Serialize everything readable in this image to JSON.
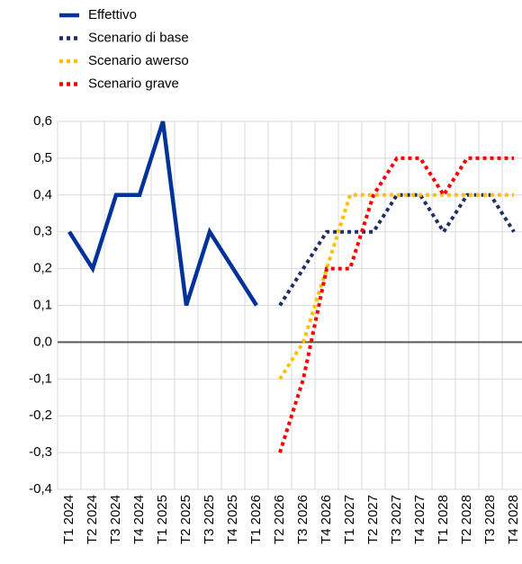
{
  "chart_data": {
    "type": "line",
    "categories": [
      "T1 2024",
      "T2 2024",
      "T3 2024",
      "T4 2024",
      "T1 2025",
      "T2 2025",
      "T3 2025",
      "T4 2025",
      "T1 2026",
      "T2 2026",
      "T3 2026",
      "T4 2026",
      "T1 2027",
      "T2 2027",
      "T3 2027",
      "T4 2027",
      "T1 2028",
      "T2 2028",
      "T3 2028",
      "T4 2028"
    ],
    "series": [
      {
        "name": "Effettivo",
        "color": "#003299",
        "style": "solid",
        "values": [
          0.3,
          0.2,
          0.4,
          0.4,
          0.6,
          0.1,
          0.3,
          0.2,
          0.1,
          null,
          null,
          null,
          null,
          null,
          null,
          null,
          null,
          null,
          null,
          null
        ]
      },
      {
        "name": "Scenario di base",
        "color": "#1f2f66",
        "style": "dotted",
        "values": [
          null,
          null,
          null,
          null,
          null,
          null,
          null,
          null,
          null,
          0.1,
          0.2,
          0.3,
          0.3,
          0.3,
          0.4,
          0.4,
          0.3,
          0.4,
          0.4,
          0.3
        ]
      },
      {
        "name": "Scenario awerso",
        "color": "#ffc000",
        "style": "dotted",
        "values": [
          null,
          null,
          null,
          null,
          null,
          null,
          null,
          null,
          null,
          -0.1,
          0.0,
          0.2,
          0.4,
          0.4,
          0.4,
          0.4,
          0.4,
          0.4,
          0.4,
          0.4
        ]
      },
      {
        "name": "Scenario grave",
        "color": "#ff0000",
        "style": "dotted",
        "values": [
          null,
          null,
          null,
          null,
          null,
          null,
          null,
          null,
          null,
          -0.3,
          -0.1,
          0.2,
          0.2,
          0.4,
          0.5,
          0.5,
          0.4,
          0.5,
          0.5,
          0.5
        ]
      }
    ],
    "ylim": [
      -0.4,
      0.6
    ],
    "yticks": [
      {
        "value": -0.4,
        "label": "-0,4"
      },
      {
        "value": -0.3,
        "label": "-0,3"
      },
      {
        "value": -0.2,
        "label": "-0,2"
      },
      {
        "value": -0.1,
        "label": "-0,1"
      },
      {
        "value": 0,
        "label": "0,0"
      },
      {
        "value": 0.1,
        "label": "0,1"
      },
      {
        "value": 0.2,
        "label": "0,2"
      },
      {
        "value": 0.3,
        "label": "0,3"
      },
      {
        "value": 0.4,
        "label": "0,4"
      },
      {
        "value": 0.5,
        "label": "0,5"
      },
      {
        "value": 0.6,
        "label": "0,6"
      }
    ],
    "grid": true,
    "legend": "top-left"
  }
}
